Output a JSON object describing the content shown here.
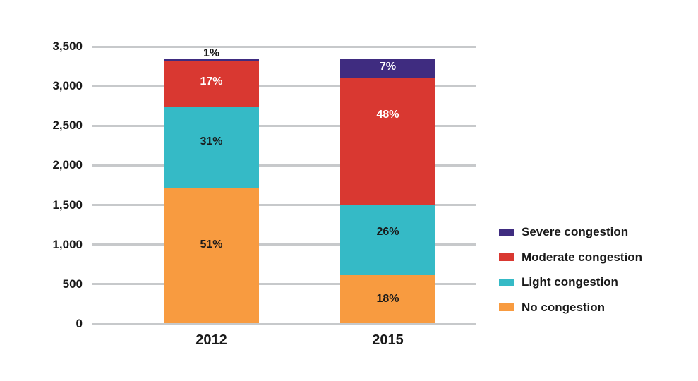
{
  "chart_data": {
    "type": "bar",
    "subtype": "stacked",
    "title": "",
    "categories": [
      "2012",
      "2015"
    ],
    "series": [
      {
        "name": "No congestion",
        "color": "#F89B40",
        "text_color": "#1A1A1A",
        "values_pct": [
          51,
          18
        ],
        "labels": [
          "51%",
          "18%"
        ]
      },
      {
        "name": "Light congestion",
        "color": "#35BAC6",
        "text_color": "#1A1A1A",
        "values_pct": [
          31,
          26
        ],
        "labels": [
          "31%",
          "26%"
        ]
      },
      {
        "name": "Moderate congestion",
        "color": "#D93831",
        "text_color": "#FFFFFF",
        "values_pct": [
          17,
          48
        ],
        "labels": [
          "17%",
          "48%"
        ]
      },
      {
        "name": "Severe congestion",
        "color": "#3F2C80",
        "text_color": "#FFFFFF",
        "values_pct": [
          1,
          7
        ],
        "labels": [
          "1%",
          "7%"
        ]
      }
    ],
    "y_axis": {
      "ticks": [
        "0",
        "500",
        "1,000",
        "1,500",
        "2,000",
        "2,500",
        "3,000",
        "3,500"
      ],
      "min": 0,
      "max": 3500
    },
    "bar_top_value_approx": 3330,
    "grid": {
      "show": true,
      "color": "#C7C9CB"
    },
    "legend": {
      "position": "right",
      "order_top_to_bottom": [
        "Severe congestion",
        "Moderate congestion",
        "Light congestion",
        "No congestion"
      ]
    },
    "label_layout": {
      "note": "fraction of segment height (from top) where each pct label centers; null = label drawn above the bar",
      "fracs": [
        [
          0.42,
          0.43,
          0.45,
          null
        ],
        [
          0.5,
          0.38,
          0.29,
          0.45
        ]
      ]
    },
    "text_color": "#1A1A1A",
    "background": "#FFFFFF"
  }
}
